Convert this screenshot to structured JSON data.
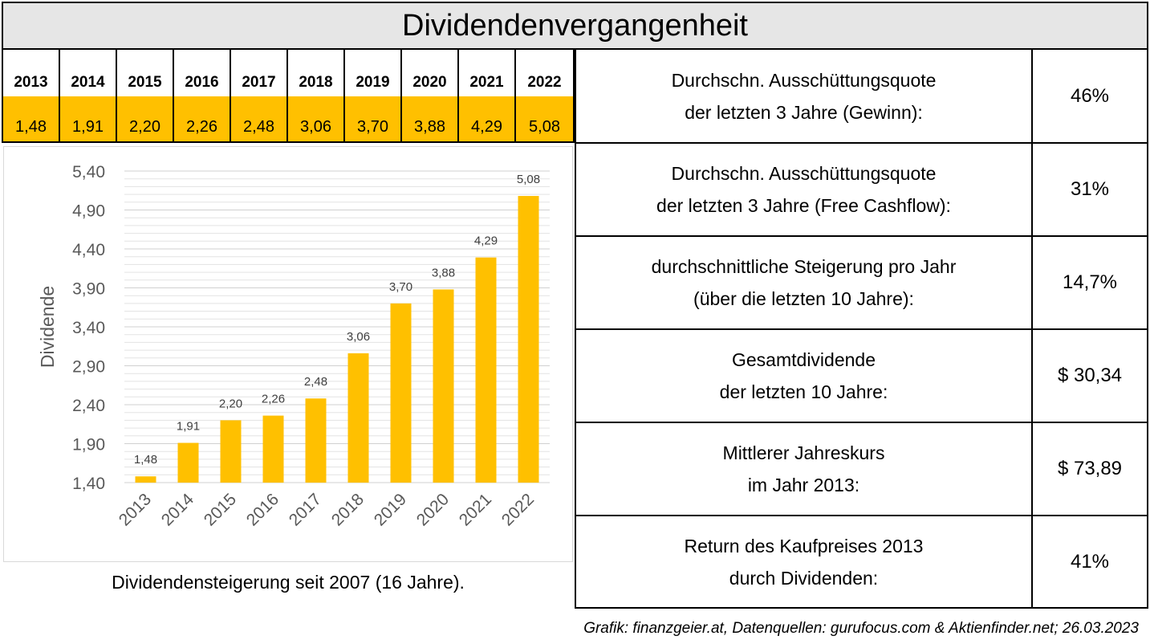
{
  "title": "Dividendenvergangenheit",
  "year_table": {
    "years": [
      "2013",
      "2014",
      "2015",
      "2016",
      "2017",
      "2018",
      "2019",
      "2020",
      "2021",
      "2022"
    ],
    "values": [
      "1,48",
      "1,91",
      "2,20",
      "2,26",
      "2,48",
      "3,06",
      "3,70",
      "3,88",
      "4,29",
      "5,08"
    ]
  },
  "chart_data": {
    "type": "bar",
    "categories": [
      "2013",
      "2014",
      "2015",
      "2016",
      "2017",
      "2018",
      "2019",
      "2020",
      "2021",
      "2022"
    ],
    "values": [
      1.48,
      1.91,
      2.2,
      2.26,
      2.48,
      3.06,
      3.7,
      3.88,
      4.29,
      5.08
    ],
    "value_labels": [
      "1,48",
      "1,91",
      "2,20",
      "2,26",
      "2,48",
      "3,06",
      "3,70",
      "3,88",
      "4,29",
      "5,08"
    ],
    "ylabel": "Dividende",
    "ylim": [
      1.4,
      5.4
    ],
    "yticks": [
      "1,40",
      "1,90",
      "2,40",
      "2,90",
      "3,40",
      "3,90",
      "4,40",
      "4,90",
      "5,40"
    ],
    "bar_color": "#ffc000",
    "grid": true
  },
  "caption": "Dividendensteigerung seit 2007 (16 Jahre).",
  "stats": [
    {
      "label_line1": "Durchschn. Ausschüttungsquote",
      "label_line2": "der letzten 3 Jahre (Gewinn):",
      "value": "46%"
    },
    {
      "label_line1": "Durchschn. Ausschüttungsquote",
      "label_line2": "der letzten 3 Jahre (Free Cashflow):",
      "value": "31%"
    },
    {
      "label_line1": "durchschnittliche Steigerung pro Jahr",
      "label_line2": "(über die letzten 10 Jahre):",
      "value": "14,7%"
    },
    {
      "label_line1": "Gesamtdividende",
      "label_line2": "der letzten 10 Jahre:",
      "value": "$ 30,34"
    },
    {
      "label_line1": "Mittlerer Jahreskurs",
      "label_line2": "im Jahr 2013:",
      "value": "$ 73,89"
    },
    {
      "label_line1": "Return des Kaufpreises 2013",
      "label_line2": "durch Dividenden:",
      "value": "41%"
    }
  ],
  "source": "Grafik: finanzgeier.at, Datenquellen: gurufocus.com & Aktienfinder.net; 26.03.2023"
}
